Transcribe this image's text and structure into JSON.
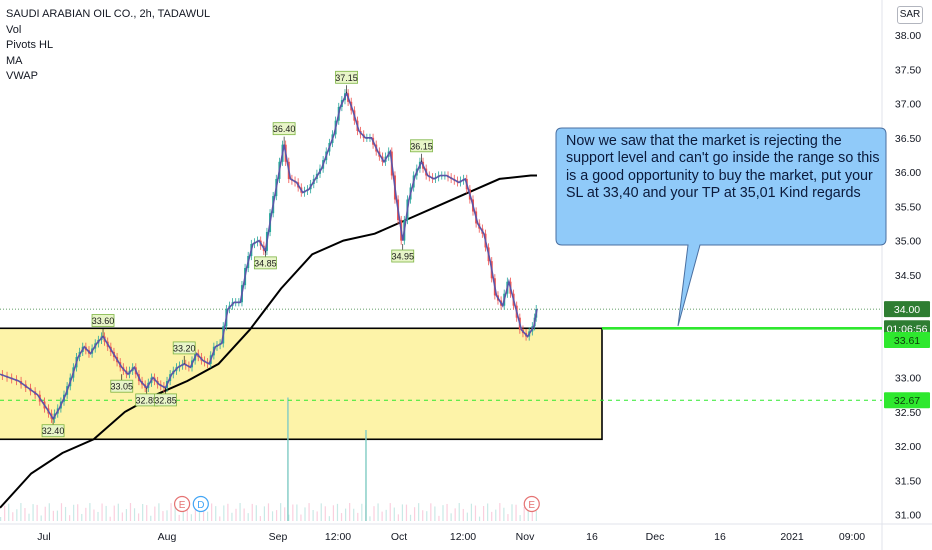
{
  "header": {
    "symbol": "SAUDI ARABIAN OIL CO., 2h, TADAWUL",
    "indicators": [
      "Vol",
      "Pivots HL",
      "MA",
      "VWAP"
    ],
    "currency": "SAR"
  },
  "annotation": {
    "text": "Now we saw that the market is rejecting the support level and can't go inside the range so this is a good opportunity to buy the market, put your SL at 33,40 and your TP at 35,01 Kind regards",
    "fill": "#90caf9"
  },
  "chart_data": {
    "type": "candlestick",
    "title": "SAUDI ARABIAN OIL CO., 2h, TADAWUL",
    "ylim": [
      30.9,
      38.3
    ],
    "price_ticks": [
      "38.00",
      "37.50",
      "37.00",
      "36.50",
      "36.00",
      "35.50",
      "35.00",
      "34.50",
      "34.00",
      "33.50",
      "33.00",
      "32.50",
      "32.00",
      "31.50",
      "31.00"
    ],
    "time_ticks": [
      "Jul",
      "Aug",
      "Sep",
      "12:00",
      "Oct",
      "12:00",
      "Nov",
      "16",
      "Dec",
      "16",
      "2021",
      "09:00"
    ],
    "price_path": [
      [
        0,
        33.05
      ],
      [
        3,
        33.0
      ],
      [
        6,
        32.95
      ],
      [
        9,
        32.85
      ],
      [
        12,
        32.75
      ],
      [
        15,
        32.55
      ],
      [
        17,
        32.4
      ],
      [
        19,
        32.55
      ],
      [
        21,
        32.75
      ],
      [
        23,
        33.0
      ],
      [
        25,
        33.3
      ],
      [
        27,
        33.45
      ],
      [
        29,
        33.35
      ],
      [
        31,
        33.5
      ],
      [
        33,
        33.6
      ],
      [
        35,
        33.45
      ],
      [
        37,
        33.3
      ],
      [
        39,
        33.15
      ],
      [
        41,
        33.05
      ],
      [
        43,
        33.15
      ],
      [
        45,
        32.95
      ],
      [
        47,
        32.85
      ],
      [
        49,
        33.0
      ],
      [
        51,
        32.9
      ],
      [
        53,
        32.85
      ],
      [
        55,
        33.05
      ],
      [
        57,
        33.15
      ],
      [
        59,
        33.2
      ],
      [
        61,
        33.15
      ],
      [
        63,
        33.35
      ],
      [
        65,
        33.25
      ],
      [
        67,
        33.2
      ],
      [
        69,
        33.45
      ],
      [
        71,
        33.5
      ],
      [
        73,
        34.0
      ],
      [
        75,
        34.1
      ],
      [
        77,
        34.1
      ],
      [
        79,
        34.6
      ],
      [
        81,
        34.95
      ],
      [
        83,
        35.0
      ],
      [
        85,
        34.85
      ],
      [
        87,
        35.4
      ],
      [
        89,
        35.9
      ],
      [
        91,
        36.4
      ],
      [
        93,
        35.9
      ],
      [
        95,
        35.85
      ],
      [
        97,
        35.7
      ],
      [
        99,
        35.75
      ],
      [
        101,
        35.9
      ],
      [
        103,
        36.05
      ],
      [
        105,
        36.3
      ],
      [
        107,
        36.55
      ],
      [
        109,
        36.95
      ],
      [
        111,
        37.15
      ],
      [
        113,
        36.9
      ],
      [
        115,
        36.6
      ],
      [
        117,
        36.5
      ],
      [
        119,
        36.5
      ],
      [
        121,
        36.3
      ],
      [
        123,
        36.15
      ],
      [
        125,
        36.3
      ],
      [
        127,
        35.6
      ],
      [
        129,
        35.0
      ],
      [
        131,
        35.6
      ],
      [
        133,
        35.95
      ],
      [
        135,
        36.15
      ],
      [
        137,
        35.95
      ],
      [
        139,
        35.9
      ],
      [
        141,
        35.95
      ],
      [
        143,
        35.95
      ],
      [
        145,
        35.9
      ],
      [
        147,
        35.85
      ],
      [
        149,
        35.9
      ],
      [
        151,
        35.6
      ],
      [
        153,
        35.25
      ],
      [
        155,
        35.1
      ],
      [
        157,
        34.7
      ],
      [
        159,
        34.2
      ],
      [
        161,
        34.05
      ],
      [
        163,
        34.4
      ],
      [
        165,
        34.05
      ],
      [
        167,
        33.7
      ],
      [
        169,
        33.6
      ],
      [
        171,
        33.75
      ],
      [
        172,
        34.0
      ]
    ],
    "moving_average": [
      [
        0,
        31.1
      ],
      [
        10,
        31.6
      ],
      [
        20,
        31.9
      ],
      [
        30,
        32.1
      ],
      [
        40,
        32.5
      ],
      [
        50,
        32.75
      ],
      [
        60,
        32.95
      ],
      [
        70,
        33.2
      ],
      [
        80,
        33.7
      ],
      [
        90,
        34.3
      ],
      [
        100,
        34.8
      ],
      [
        110,
        35.0
      ],
      [
        120,
        35.1
      ],
      [
        130,
        35.3
      ],
      [
        140,
        35.5
      ],
      [
        150,
        35.7
      ],
      [
        160,
        35.9
      ],
      [
        170,
        35.95
      ],
      [
        172,
        35.95
      ]
    ],
    "pivots": [
      {
        "label": "32.40",
        "x": 17,
        "y": 32.4,
        "type": "low"
      },
      {
        "label": "33.60",
        "x": 33,
        "y": 33.6,
        "type": "high"
      },
      {
        "label": "33.05",
        "x": 39,
        "y": 33.05,
        "type": "low"
      },
      {
        "label": "32.85",
        "x": 47,
        "y": 32.85,
        "type": "low"
      },
      {
        "label": "32.85",
        "x": 53,
        "y": 32.85,
        "type": "low"
      },
      {
        "label": "33.20",
        "x": 59,
        "y": 33.2,
        "type": "high"
      },
      {
        "label": "36.40",
        "x": 91,
        "y": 36.4,
        "type": "high"
      },
      {
        "label": "34.85",
        "x": 85,
        "y": 34.85,
        "type": "low"
      },
      {
        "label": "37.15",
        "x": 111,
        "y": 37.15,
        "type": "high"
      },
      {
        "label": "36.15",
        "x": 135,
        "y": 36.15,
        "type": "high"
      },
      {
        "label": "34.95",
        "x": 129,
        "y": 34.95,
        "type": "low"
      }
    ],
    "range_box": {
      "y_top": 33.72,
      "y_bottom": 32.1,
      "fill": "#fdf3a8"
    },
    "support_line": {
      "price": 33.72,
      "color": "#2ee82e"
    },
    "dashed_level": {
      "price": 32.67,
      "color": "#2ee82e"
    },
    "last_price_line": 34.0,
    "price_labels": [
      {
        "text": "34.00",
        "price": 34.0,
        "bg": "#2e7d32"
      },
      {
        "text": "01:06:56",
        "price": 33.72,
        "bg": "#2e7d32"
      },
      {
        "text": "33.61",
        "price": 33.55,
        "bg": "#2ee82e"
      },
      {
        "text": "32.67",
        "price": 32.67,
        "bg": "#2ee82e"
      }
    ],
    "event_markers": [
      {
        "label": "E",
        "x": 58,
        "color": "#e57373"
      },
      {
        "label": "D",
        "x": 64,
        "color": "#42a5f5"
      },
      {
        "label": "E",
        "x": 170,
        "color": "#e57373"
      }
    ],
    "volume_spikes": [
      {
        "x": 92,
        "v": 0.95
      },
      {
        "x": 117,
        "v": 0.7
      }
    ],
    "colors": {
      "up": "#26a69a",
      "down": "#ef5350",
      "line": "#5c55a8",
      "ma": "#000000"
    }
  }
}
